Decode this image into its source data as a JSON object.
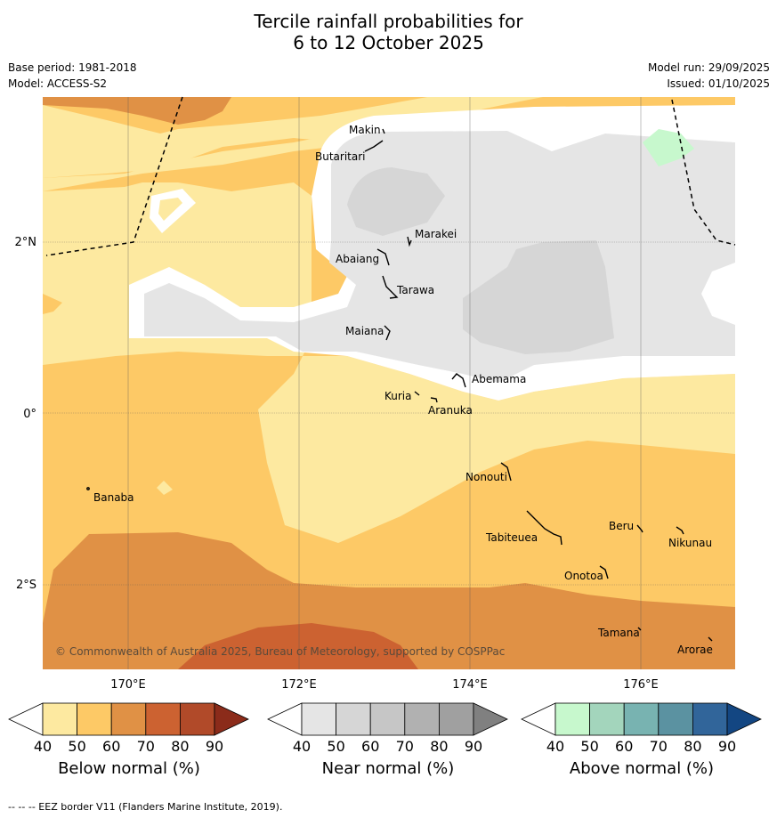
{
  "title_line1": "Tercile rainfall probabilities for",
  "title_line2": "6 to 12 October 2025",
  "base_period": "Base period: 1981-2018",
  "model": "Model: ACCESS-S2",
  "model_run": "Model run: 29/09/2025",
  "issued": "Issued: 01/10/2025",
  "map": {
    "lon_labels": [
      "170°E",
      "172°E",
      "174°E",
      "176°E"
    ],
    "lat_labels": [
      "2°N",
      "0°",
      "2°S"
    ],
    "places": [
      "Makin",
      "Butaritari",
      "Marakei",
      "Abaiang",
      "Tarawa",
      "Maiana",
      "Abemama",
      "Kuria",
      "Aranuka",
      "Banaba",
      "Nonouti",
      "Tabiteuea",
      "Beru",
      "Nikunau",
      "Onotoa",
      "Tamana",
      "Arorae"
    ],
    "copyright": "© Commonwealth of Australia 2025, Bureau of Meteorology, supported by COSPPac"
  },
  "colorbars": [
    {
      "title": "Below normal (%)",
      "ticks": [
        "40",
        "50",
        "60",
        "70",
        "80",
        "90"
      ],
      "colors": [
        "#ffffff",
        "#fde9a0",
        "#fdc966",
        "#e09145",
        "#cc6231",
        "#b14a29",
        "#8b2b1a"
      ]
    },
    {
      "title": "Near normal (%)",
      "ticks": [
        "40",
        "50",
        "60",
        "70",
        "80",
        "90"
      ],
      "colors": [
        "#ffffff",
        "#e5e5e5",
        "#d6d6d6",
        "#c6c6c6",
        "#b1b1b1",
        "#a0a0a0",
        "#808080"
      ]
    },
    {
      "title": "Above normal (%)",
      "ticks": [
        "40",
        "50",
        "60",
        "70",
        "80",
        "90"
      ],
      "colors": [
        "#ffffff",
        "#c7f8cd",
        "#a3d5bc",
        "#78b3b1",
        "#5b92a1",
        "#31659a",
        "#134682"
      ]
    }
  ],
  "footer": "-- -- -- EEZ border V11 (Flanders Marine Institute, 2019)."
}
